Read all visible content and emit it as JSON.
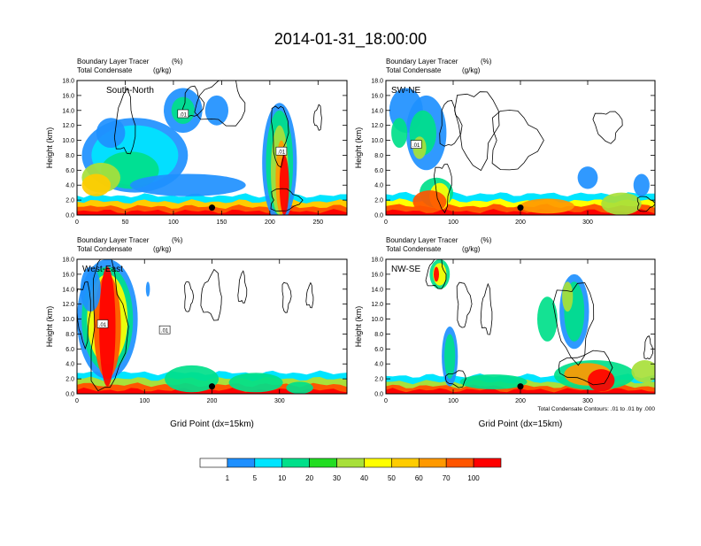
{
  "figure_title": "2014-01-31_18:00:00",
  "colors": {
    "palette": [
      "#ffffff",
      "#1e90ff",
      "#00e5ff",
      "#00e08a",
      "#22dd22",
      "#a8e03a",
      "#ffff00",
      "#ffcc00",
      "#ff9900",
      "#ff5500",
      "#ff0000"
    ],
    "contour": "#000000",
    "frame": "#000000"
  },
  "chart_data": [
    {
      "type": "contour",
      "panel": "South-North",
      "title_left_1": "Boundary Layer Tracer",
      "title_unit_1": "(%)",
      "title_left_2": "Total Condensate",
      "title_unit_2": "(g/kg)",
      "ylabel": "Height (km)",
      "xlabel": "",
      "xlim": [
        0,
        280
      ],
      "ylim": [
        0,
        18
      ],
      "xticks": [
        0,
        50,
        100,
        150,
        200,
        250
      ],
      "yticks": [
        "0.0",
        "2.0",
        "4.0",
        "6.0",
        "8.0",
        "10.0",
        "12.0",
        "14.0",
        "16.0",
        "18.0"
      ],
      "contour_labels": [
        {
          "text": ".01",
          "x": 110,
          "y": 13.5
        },
        {
          "text": ".01",
          "x": 212,
          "y": 8.5
        }
      ],
      "marker": {
        "x": 140,
        "y": 1.0
      }
    },
    {
      "type": "contour",
      "panel": "SW-NE",
      "title_left_1": "Boundary Layer Tracer",
      "title_unit_1": "(%)",
      "title_left_2": "Total Condensate",
      "title_unit_2": "(g/kg)",
      "ylabel": "Height (km)",
      "xlabel": "",
      "xlim": [
        0,
        400
      ],
      "ylim": [
        0,
        18
      ],
      "xticks": [
        0,
        100,
        200,
        300
      ],
      "yticks": [
        "0.0",
        "2.0",
        "4.0",
        "6.0",
        "8.0",
        "10.0",
        "12.0",
        "14.0",
        "16.0",
        "18.0"
      ],
      "contour_labels": [
        {
          "text": ".01",
          "x": 45,
          "y": 9.4
        }
      ],
      "marker": {
        "x": 200,
        "y": 1.0
      }
    },
    {
      "type": "contour",
      "panel": "West-East",
      "title_left_1": "Boundary Layer Tracer",
      "title_unit_1": "(%)",
      "title_left_2": "Total Condensate",
      "title_unit_2": "(g/kg)",
      "ylabel": "Height (km)",
      "xlabel": "Grid Point (dx=15km)",
      "xlim": [
        0,
        400
      ],
      "ylim": [
        0,
        18
      ],
      "xticks": [
        0,
        100,
        200,
        300
      ],
      "yticks": [
        "0.0",
        "2.0",
        "4.0",
        "6.0",
        "8.0",
        "10.0",
        "12.0",
        "14.0",
        "16.0",
        "18.0"
      ],
      "contour_labels": [
        {
          "text": ".01",
          "x": 38,
          "y": 9.3
        },
        {
          "text": ".01",
          "x": 130,
          "y": 8.5
        }
      ],
      "marker": {
        "x": 200,
        "y": 1.0
      }
    },
    {
      "type": "contour",
      "panel": "NW-SE",
      "title_left_1": "Boundary Layer Tracer",
      "title_unit_1": "(%)",
      "title_left_2": "Total Condensate",
      "title_unit_2": "(g/kg)",
      "ylabel": "Height (km)",
      "xlabel": "Grid Point (dx=15km)",
      "xlim": [
        0,
        400
      ],
      "ylim": [
        0,
        18
      ],
      "xticks": [
        0,
        100,
        200,
        300
      ],
      "yticks": [
        "0.0",
        "2.0",
        "4.0",
        "6.0",
        "8.0",
        "10.0",
        "12.0",
        "14.0",
        "16.0",
        "18.0"
      ],
      "contour_labels": [],
      "marker": {
        "x": 200,
        "y": 1.0
      },
      "footnote": "Total Condensate Contours: .01 to .01 by .000"
    }
  ],
  "colorbar": {
    "labels": [
      "1",
      "5",
      "10",
      "20",
      "30",
      "40",
      "50",
      "60",
      "70",
      "100"
    ]
  }
}
